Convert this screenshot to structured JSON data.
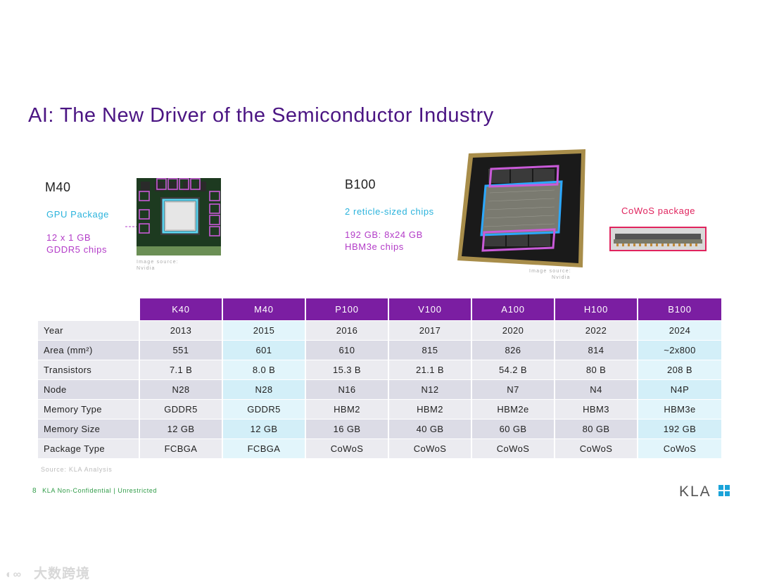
{
  "title": "AI: The New Driver of the Semiconductor Industry",
  "m40": {
    "heading": "M40",
    "package_label": "GPU Package",
    "chips_label_line1": "12 x 1 GB",
    "chips_label_line2": "GDDR5 chips",
    "image_source_line1": "Image source:",
    "image_source_line2": "Nvidia"
  },
  "b100": {
    "heading": "B100",
    "reticle_label": "2 reticle-sized chips",
    "hbm_label_line1": "192 GB: 8x24 GB",
    "hbm_label_line2": "HBM3e chips",
    "image_source_line1": "Image source:",
    "image_source_line2": "Nvidia",
    "cowos_label": "CoWoS package"
  },
  "table": {
    "columns": [
      "K40",
      "M40",
      "P100",
      "V100",
      "A100",
      "H100",
      "B100"
    ],
    "rows": [
      {
        "label": "Year",
        "values": [
          "2013",
          "2015",
          "2016",
          "2017",
          "2020",
          "2022",
          "2024"
        ]
      },
      {
        "label": "Area (mm²)",
        "values": [
          "551",
          "601",
          "610",
          "815",
          "826",
          "814",
          "~2x800"
        ]
      },
      {
        "label": "Transistors",
        "values": [
          "7.1 B",
          "8.0 B",
          "15.3 B",
          "21.1 B",
          "54.2 B",
          "80 B",
          "208 B"
        ]
      },
      {
        "label": "Node",
        "values": [
          "N28",
          "N28",
          "N16",
          "N12",
          "N7",
          "N4",
          "N4P"
        ]
      },
      {
        "label": "Memory Type",
        "values": [
          "GDDR5",
          "GDDR5",
          "HBM2",
          "HBM2",
          "HBM2e",
          "HBM3",
          "HBM3e"
        ]
      },
      {
        "label": "Memory Size",
        "values": [
          "12 GB",
          "12 GB",
          "16 GB",
          "40 GB",
          "60 GB",
          "80 GB",
          "192 GB"
        ]
      },
      {
        "label": "Package Type",
        "values": [
          "FCBGA",
          "FCBGA",
          "CoWoS",
          "CoWoS",
          "CoWoS",
          "CoWoS",
          "CoWoS"
        ]
      }
    ]
  },
  "source": "Source: KLA Analysis",
  "footer": {
    "page_number": "8",
    "classification": "KLA Non-Confidential | Unrestricted"
  },
  "logo_text": "KLA",
  "watermark": "大数跨境",
  "colors": {
    "title": "#4b1583",
    "header_bg": "#7b1ea2",
    "cyan": "#2bb3dc",
    "magenta": "#b33cc8",
    "pink": "#e0245e",
    "footer_green": "#2e9b46"
  }
}
